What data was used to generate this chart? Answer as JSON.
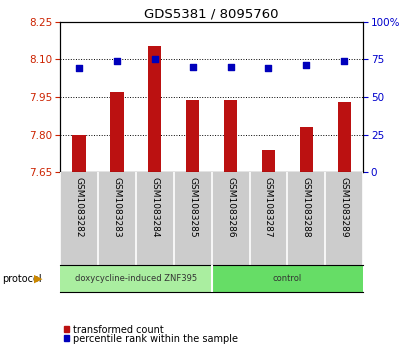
{
  "title": "GDS5381 / 8095760",
  "samples": [
    "GSM1083282",
    "GSM1083283",
    "GSM1083284",
    "GSM1083285",
    "GSM1083286",
    "GSM1083287",
    "GSM1083288",
    "GSM1083289"
  ],
  "transformed_counts": [
    7.8,
    7.97,
    8.155,
    7.94,
    7.94,
    7.74,
    7.83,
    7.93
  ],
  "percentile_ranks": [
    69,
    74,
    75,
    70,
    70,
    69,
    71,
    74
  ],
  "ylim_left": [
    7.65,
    8.25
  ],
  "yticks_left": [
    7.65,
    7.8,
    7.95,
    8.1,
    8.25
  ],
  "ylim_right": [
    0,
    100
  ],
  "yticks_right": [
    0,
    25,
    50,
    75,
    100
  ],
  "yticklabels_right": [
    "0",
    "25",
    "50",
    "75",
    "100%"
  ],
  "bar_color": "#bb1111",
  "dot_color": "#0000bb",
  "dot_size": 25,
  "protocol_groups": [
    {
      "label": "doxycycline-induced ZNF395",
      "start": 0,
      "end": 4,
      "color": "#aaeea0"
    },
    {
      "label": "control",
      "start": 4,
      "end": 8,
      "color": "#66dd66"
    }
  ],
  "legend_items": [
    {
      "label": "transformed count",
      "color": "#bb1111"
    },
    {
      "label": "percentile rank within the sample",
      "color": "#0000bb"
    }
  ],
  "bar_width": 0.35,
  "left_tick_color": "#cc2200",
  "right_tick_color": "#0000cc",
  "label_bg_color": "#cccccc",
  "label_sep_color": "#ffffff",
  "plot_bg": "#ffffff"
}
